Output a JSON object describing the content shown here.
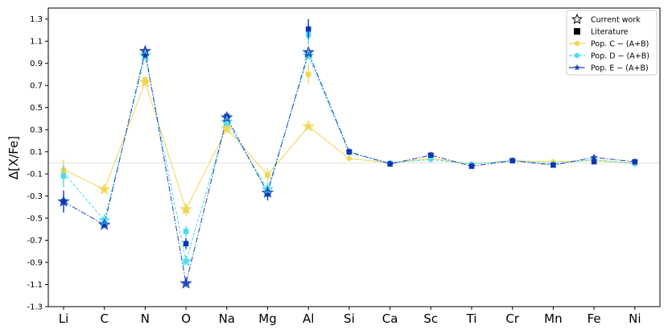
{
  "chart_data": {
    "type": "line",
    "title": "",
    "xlabel": "",
    "ylabel": "Δ[X/Fe]",
    "categories": [
      "Li",
      "C",
      "N",
      "O",
      "Na",
      "Mg",
      "Al",
      "Si",
      "Ca",
      "Sc",
      "Ti",
      "Cr",
      "Mn",
      "Fe",
      "Ni"
    ],
    "ylim": [
      -1.3,
      1.4
    ],
    "yticks": [
      "1.3",
      "1.1",
      "0.9",
      "0.7",
      "0.5",
      "0.3",
      "0.1",
      "-0.1",
      "-0.3",
      "-0.5",
      "-0.7",
      "-0.9",
      "-1.1",
      "-1.3"
    ],
    "reference_line": 0,
    "series": [
      {
        "name": "Pop. C − (A+B)",
        "color": "#f2d552",
        "marker": "circle",
        "linestyle": "solid",
        "values": [
          -0.06,
          -0.24,
          0.73,
          -0.42,
          0.31,
          -0.11,
          0.33,
          0.04,
          0.0,
          0.04,
          -0.01,
          0.02,
          0.01,
          0.02,
          0.0
        ]
      },
      {
        "name": "Pop. D − (A+B)",
        "color": "#4cdcef",
        "marker": "circle",
        "linestyle": "dashed",
        "values": [
          -0.09,
          -0.52,
          0.97,
          -0.89,
          0.37,
          -0.24,
          0.97,
          0.09,
          0.0,
          0.03,
          -0.01,
          0.02,
          -0.01,
          0.03,
          -0.01
        ]
      },
      {
        "name": "Pop. E − (A+B)",
        "color": "#1e45b5",
        "marker": "star",
        "linestyle": "dashdot",
        "values": [
          -0.35,
          -0.56,
          1.01,
          -1.09,
          0.41,
          -0.27,
          1.0,
          0.1,
          -0.01,
          0.07,
          -0.03,
          0.02,
          -0.02,
          0.05,
          0.01
        ]
      }
    ],
    "literature": [
      {
        "series": "Pop. C − (A+B)",
        "values": [
          -0.07,
          null,
          0.75,
          -0.43,
          0.31,
          -0.11,
          0.8,
          null,
          null,
          null,
          null,
          null,
          null,
          null,
          null
        ]
      },
      {
        "series": "Pop. D − (A+B)",
        "values": [
          -0.12,
          -0.52,
          0.96,
          -0.62,
          0.37,
          -0.24,
          1.16,
          null,
          null,
          null,
          null,
          null,
          null,
          null,
          null
        ]
      },
      {
        "series": "Pop. E − (A+B)",
        "values": [
          -0.35,
          -0.56,
          0.97,
          -0.73,
          0.42,
          -0.28,
          1.21,
          0.1,
          -0.01,
          0.07,
          -0.03,
          0.02,
          -0.02,
          0.01,
          0.01
        ]
      }
    ],
    "legend": {
      "position": "top-right",
      "entries": [
        "Current work",
        "Literature",
        "Pop. C − (A+B)",
        "Pop. D − (A+B)",
        "Pop. E − (A+B)"
      ]
    },
    "grid": false
  }
}
